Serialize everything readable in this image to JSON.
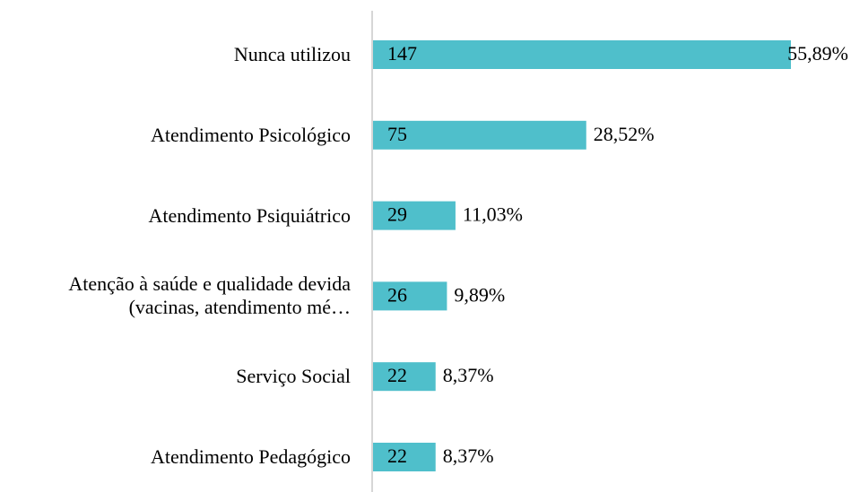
{
  "chart_data": {
    "type": "bar",
    "orientation": "horizontal",
    "categories": [
      "Nunca utilizou",
      "Atendimento Psicológico",
      "Atendimento Psiquiátrico",
      "Atenção à saúde e qualidade devida\n(vacinas, atendimento mé…",
      "Serviço Social",
      "Atendimento Pedagógico"
    ],
    "values": [
      147,
      75,
      29,
      26,
      22,
      22
    ],
    "percentages": [
      55.89,
      28.52,
      11.03,
      9.89,
      8.37,
      8.37
    ],
    "percentage_labels": [
      "55,89%",
      "28,52%",
      "11,03%",
      "9,89%",
      "8,37%",
      "8,37%"
    ],
    "color": "#4fbfcb"
  }
}
